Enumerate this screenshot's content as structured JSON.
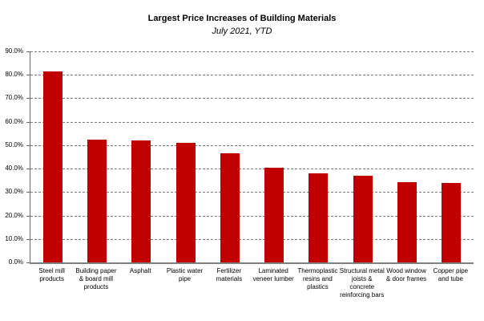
{
  "chart_data": {
    "type": "bar",
    "title": "Largest Price Increases of Building Materials",
    "subtitle": "July 2021, YTD",
    "categories": [
      "Steel mill products",
      "Building paper & board mill products",
      "Asphalt",
      "Plastic water pipe",
      "Fertilizer materials",
      "Laminated veneer lumber",
      "Thermoplastic resins and plastics",
      "Structural metal joists & concrete reinforcing bars",
      "Wood window & door frames",
      "Copper pipe and tube"
    ],
    "category_lines": [
      [
        "Steel mill",
        "products"
      ],
      [
        "Building paper",
        "& board mill",
        "products"
      ],
      [
        "Asphalt"
      ],
      [
        "Plastic water",
        "pipe"
      ],
      [
        "Fertilizer",
        "materials"
      ],
      [
        "Laminated",
        "veneer lumber"
      ],
      [
        "Thermoplastic",
        "resins and",
        "plastics"
      ],
      [
        "Structural metal",
        "joists &",
        "concrete",
        "reinforcing bars"
      ],
      [
        "Wood window",
        "& door frames"
      ],
      [
        "Copper pipe",
        "and tube"
      ]
    ],
    "values": [
      81.3,
      52.5,
      52.0,
      51.0,
      46.4,
      40.3,
      38.0,
      36.8,
      34.2,
      33.8
    ],
    "xlabel": "",
    "ylabel": "",
    "ylim": [
      0,
      90
    ],
    "ytick_step": 10,
    "ytick_labels": [
      "0.0%",
      "10.0%",
      "20.0%",
      "30.0%",
      "40.0%",
      "50.0%",
      "60.0%",
      "70.0%",
      "80.0%",
      "90.0%"
    ],
    "grid": true,
    "grid_style": "dashed",
    "legend": false,
    "bar_color": "#C00000",
    "axis_color": "#808080",
    "gridline_color": "#7A7A7A",
    "text_color": "#000000",
    "background": "#FFFFFF"
  }
}
